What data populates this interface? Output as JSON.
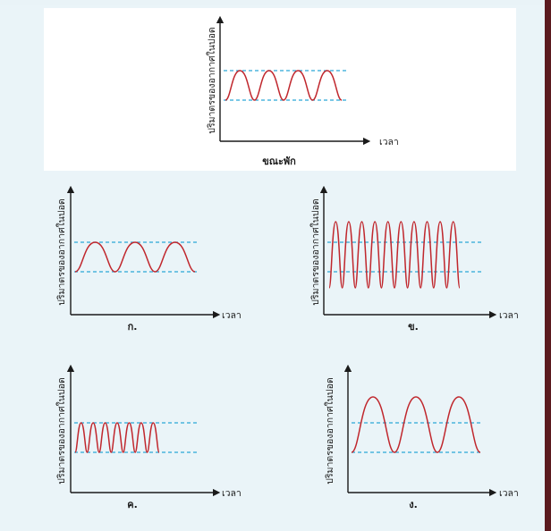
{
  "ylabel": "ปริมาตรของอากาศในปอด",
  "xlabel": "เวลา",
  "graphs": {
    "rest": {
      "caption": "ขณะพัก",
      "cycles": 4
    },
    "a": {
      "caption": "ก.",
      "cycles": 3
    },
    "b": {
      "caption": "ข.",
      "cycles": 10
    },
    "c": {
      "caption": "ค.",
      "cycles": 7
    },
    "d": {
      "caption": "ง.",
      "cycles": 3
    }
  },
  "colors": {
    "curve": "#c0272d",
    "guide": "#2aa7d6",
    "axis": "#1a1a1a"
  }
}
